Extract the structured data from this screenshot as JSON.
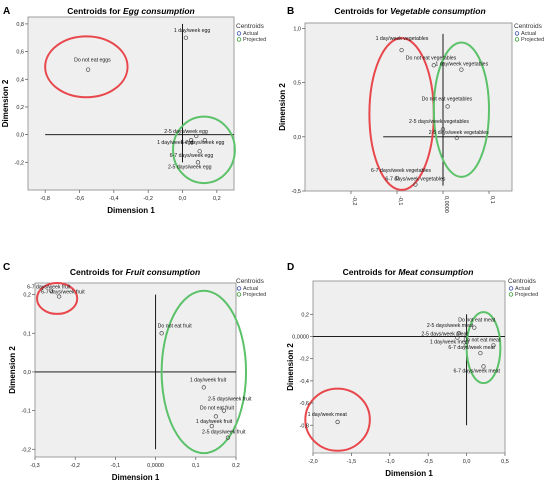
{
  "chart_data": [
    {
      "panel_letter": "A",
      "type": "scatter",
      "title_prefix": "Centroids for ",
      "title_em": "Egg consumption",
      "xlabel": "Dimension 1",
      "ylabel": "Dimension 2",
      "xlim": [
        -0.9,
        0.3
      ],
      "ylim": [
        -0.4,
        0.85
      ],
      "xticks": [
        -0.8,
        -0.6,
        -0.4,
        -0.2,
        0.0,
        0.2
      ],
      "xtick_labels": [
        "-0,8",
        "-0,6",
        "-0,4",
        "-0,2",
        "0,0",
        "0,2"
      ],
      "yticks": [
        -0.2,
        0.0,
        0.2,
        0.4,
        0.6,
        0.8
      ],
      "ytick_labels": [
        "-0,2",
        "0,0",
        "0,2",
        "0,4",
        "0,6",
        "0,8"
      ],
      "legend": {
        "title": "Centroids",
        "items": [
          "Actual",
          "Projected"
        ],
        "placement": "top-right-outside"
      },
      "axis_lines": {
        "h": [
          -0.8,
          0.3
        ],
        "v": [
          -0.2,
          0.8
        ]
      },
      "points": [
        {
          "label": "1 day/week egg",
          "x": 0.02,
          "y": 0.7
        },
        {
          "label": "Do not eat eggs",
          "x": -0.55,
          "y": 0.47
        },
        {
          "label": "2-5 days/week egg",
          "x": 0.08,
          "y": -0.01
        },
        {
          "label": "1 day/week egg",
          "x": 0.05,
          "y": -0.04
        },
        {
          "label": "6-7 days/week egg",
          "x": 0.13,
          "y": -0.04
        },
        {
          "label": "6-7 days/week egg",
          "x": 0.1,
          "y": -0.12
        },
        {
          "label": "2-5 days/week egg",
          "x": 0.09,
          "y": -0.2
        }
      ],
      "ellipses": [
        {
          "color": "red",
          "cx": -0.56,
          "cy": 0.49,
          "rx": 0.24,
          "ry": 0.22
        },
        {
          "color": "green",
          "cx": 0.125,
          "cy": -0.11,
          "rx": 0.18,
          "ry": 0.24
        }
      ]
    },
    {
      "panel_letter": "B",
      "type": "scatter",
      "title_prefix": "Centroids for ",
      "title_em": "Vegetable consumption",
      "xlabel": "",
      "ylabel": "Dimension 2",
      "xlim": [
        -0.3,
        0.15
      ],
      "ylim": [
        -0.5,
        1.05
      ],
      "xticks": [
        -0.2,
        -0.1,
        0.0,
        0.1
      ],
      "xtick_labels": [
        "-0,2",
        "-0,1",
        "0,0000",
        "0,1"
      ],
      "yticks": [
        -0.5,
        0.0,
        0.5,
        1.0
      ],
      "ytick_labels": [
        "-0,5",
        "0,0",
        "0,5",
        "1,0"
      ],
      "legend": {
        "title": "Centroids",
        "items": [
          "Actual",
          "Projected"
        ],
        "placement": "top-right-outside"
      },
      "axis_lines": {
        "h": [
          -0.13,
          0.15
        ],
        "v": [
          -0.45,
          0.95
        ]
      },
      "points": [
        {
          "label": "1 day/week vegetables",
          "x": -0.09,
          "y": 0.8
        },
        {
          "label": "Do not eat vegetables",
          "x": -0.02,
          "y": 0.66
        },
        {
          "label": "1 day/week vegetables",
          "x": 0.04,
          "y": 0.62
        },
        {
          "label": "Do not eat vegetables",
          "x": 0.01,
          "y": 0.28
        },
        {
          "label": "2-5 days/week vegetables",
          "x": 0.0,
          "y": 0.07
        },
        {
          "label": "2-5 days/week vegetables",
          "x": 0.03,
          "y": -0.01
        },
        {
          "label": "6-7 days/week vegetables",
          "x": -0.1,
          "y": -0.38
        },
        {
          "label": "6-7 days/week vegetables",
          "x": -0.06,
          "y": -0.44
        }
      ],
      "ellipses": [
        {
          "color": "red",
          "cx": -0.09,
          "cy": 0.21,
          "rx": 0.07,
          "ry": 0.7
        },
        {
          "color": "green",
          "cx": 0.04,
          "cy": 0.25,
          "rx": 0.06,
          "ry": 0.62
        }
      ]
    },
    {
      "panel_letter": "C",
      "type": "scatter",
      "title_prefix": "Centroids for ",
      "title_em": "Fruit consumption",
      "xlabel": "Dimension 1",
      "ylabel": "Dimension 2",
      "xlim": [
        -0.3,
        0.2
      ],
      "ylim": [
        -0.22,
        0.23
      ],
      "xticks": [
        -0.3,
        -0.2,
        -0.1,
        0.0,
        0.1,
        0.2
      ],
      "xtick_labels": [
        "-0,3",
        "-0,2",
        "-0,1",
        "0,0000",
        "0,1",
        "0,2"
      ],
      "yticks": [
        -0.2,
        -0.1,
        0.0,
        0.1,
        0.2
      ],
      "ytick_labels": [
        "-0,2",
        "-0,1",
        "0,0",
        "0,1",
        "0,2"
      ],
      "legend": {
        "title": "Centroids",
        "items": [
          "Actual",
          "Projected"
        ],
        "placement": "top-right-outside"
      },
      "axis_lines": {
        "h": [
          -0.3,
          0.2
        ],
        "v": [
          -0.2,
          0.2
        ]
      },
      "points": [
        {
          "label": "6-7 days/week fruit",
          "x": -0.26,
          "y": 0.21
        },
        {
          "label": "6-7 days/week fruit",
          "x": -0.24,
          "y": 0.195
        },
        {
          "label": "Do not eat fruit",
          "x": 0.015,
          "y": 0.1
        },
        {
          "label": "1 day/week fruit",
          "x": 0.12,
          "y": -0.04
        },
        {
          "label": "2-5 days/week fruit",
          "x": 0.17,
          "y": -0.1
        },
        {
          "label": "Do not eat fruit",
          "x": 0.15,
          "y": -0.115
        },
        {
          "label": "1 day/week fruit",
          "x": 0.14,
          "y": -0.14
        },
        {
          "label": "2-5 days/week fruit",
          "x": 0.18,
          "y": -0.17
        }
      ],
      "ellipses": [
        {
          "color": "red",
          "cx": -0.245,
          "cy": 0.19,
          "rx": 0.05,
          "ry": 0.04
        },
        {
          "color": "green",
          "cx": 0.12,
          "cy": 0.0,
          "rx": 0.105,
          "ry": 0.21
        }
      ]
    },
    {
      "panel_letter": "D",
      "type": "scatter",
      "title_prefix": "Centroids for ",
      "title_em": "Meat consumption",
      "xlabel": "Dimension 1",
      "ylabel": "Dimension 2",
      "xlim": [
        -2.0,
        0.5
      ],
      "ylim": [
        -1.05,
        0.5
      ],
      "xticks": [
        -2.0,
        -1.5,
        -1.0,
        -0.5,
        0.0,
        0.5
      ],
      "xtick_labels": [
        "-2,0",
        "-1,5",
        "-1,0",
        "-0,5",
        "0,0",
        "0,5"
      ],
      "yticks": [
        0.2,
        0.0,
        -0.2,
        -0.4,
        -0.6,
        -0.8
      ],
      "ytick_labels": [
        "0,2",
        "0,0000",
        "-0,2",
        "-0,4",
        "-0,6",
        "-0,8"
      ],
      "legend": {
        "title": "Centroids",
        "items": [
          "Actual",
          "Projected"
        ],
        "placement": "top-right-outside"
      },
      "axis_lines": {
        "h": [
          -2.0,
          0.5
        ],
        "v": [
          -0.8,
          0.2
        ]
      },
      "points": [
        {
          "label": "Do not eat meat",
          "x": 0.1,
          "y": 0.08
        },
        {
          "label": "2-5 days/week meat",
          "x": -0.1,
          "y": 0.03
        },
        {
          "label": "2-5 days/week meat",
          "x": -0.12,
          "y": -0.01
        },
        {
          "label": "1 day/week meat",
          "x": -0.01,
          "y": -0.08
        },
        {
          "label": "Do not eat meat",
          "x": 0.35,
          "y": -0.08
        },
        {
          "label": "6-7 days/week meat",
          "x": 0.18,
          "y": -0.15
        },
        {
          "label": "6-7 days/week meat",
          "x": 0.22,
          "y": -0.27
        },
        {
          "label": "1 day/week meat",
          "x": -1.68,
          "y": -0.77
        }
      ],
      "ellipses": [
        {
          "color": "red",
          "cx": -1.68,
          "cy": -0.75,
          "rx": 0.42,
          "ry": 0.28
        },
        {
          "color": "green",
          "cx": 0.22,
          "cy": -0.1,
          "rx": 0.22,
          "ry": 0.32
        }
      ]
    }
  ]
}
